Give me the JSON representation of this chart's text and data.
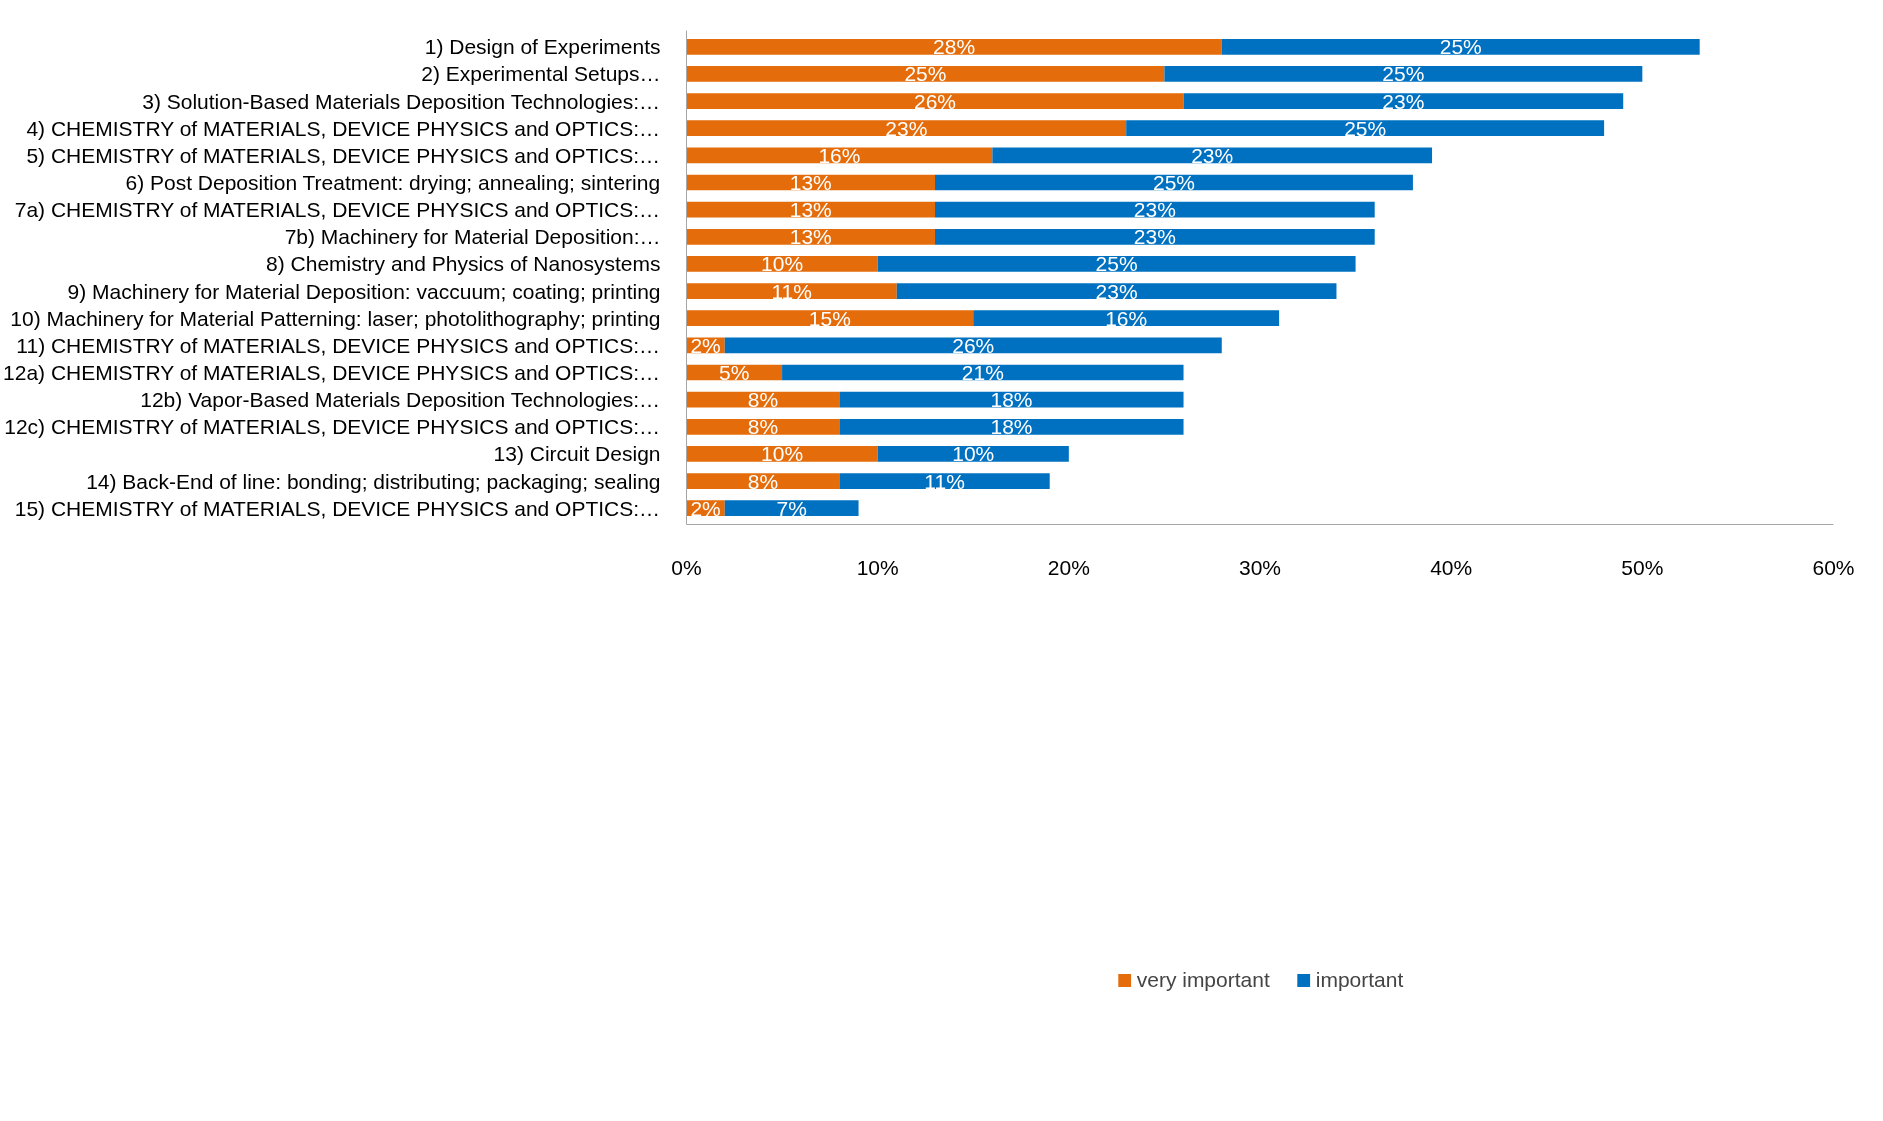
{
  "chart_data": {
    "type": "bar",
    "orientation": "horizontal",
    "stacked": true,
    "categories": [
      "1) Design of Experiments",
      "2) Experimental Setups…",
      "3) Solution-Based Materials Deposition Technologies:…",
      "4) CHEMISTRY of MATERIALS, DEVICE PHYSICS and OPTICS:…",
      "5) CHEMISTRY of MATERIALS, DEVICE PHYSICS and OPTICS:…",
      "6) Post Deposition Treatment: drying; annealing; sintering",
      "7a) CHEMISTRY of MATERIALS, DEVICE PHYSICS and OPTICS:…",
      "7b) Machinery for Material Deposition:…",
      "8) Chemistry and Physics of Nanosystems",
      "9) Machinery for Material Deposition: vaccuum; coating; printing",
      "10) Machinery for Material Patterning: laser; photolithography; printing",
      "11) CHEMISTRY of MATERIALS, DEVICE PHYSICS and OPTICS:…",
      "12a) CHEMISTRY of MATERIALS, DEVICE PHYSICS and OPTICS:…",
      "12b) Vapor-Based Materials Deposition Technologies:…",
      "12c) CHEMISTRY of MATERIALS, DEVICE PHYSICS and OPTICS:…",
      "13) Circuit Design",
      "14) Back-End of line: bonding; distributing; packaging; sealing",
      "15) CHEMISTRY of MATERIALS, DEVICE PHYSICS and OPTICS:…"
    ],
    "series": [
      {
        "name": "very important",
        "color": "#e46c0a",
        "values": [
          28,
          25,
          26,
          23,
          16,
          13,
          13,
          13,
          10,
          11,
          15,
          2,
          5,
          8,
          8,
          10,
          8,
          2
        ],
        "value_labels": [
          "28%",
          "25%",
          "26%",
          "23%",
          "16%",
          "13%",
          "13%",
          "13%",
          "10%",
          "11%",
          "15%",
          "2%",
          "5%",
          "8%",
          "8%",
          "10%",
          "8%",
          "2%"
        ]
      },
      {
        "name": "important",
        "color": "#0070c0",
        "values": [
          25,
          25,
          23,
          25,
          23,
          25,
          23,
          23,
          25,
          23,
          16,
          26,
          21,
          18,
          18,
          10,
          11,
          7
        ],
        "value_labels": [
          "25%",
          "25%",
          "23%",
          "25%",
          "23%",
          "25%",
          "23%",
          "23%",
          "25%",
          "23%",
          "16%",
          "26%",
          "21%",
          "18%",
          "18%",
          "10%",
          "11%",
          "7%"
        ]
      }
    ],
    "xlim": [
      0,
      60
    ],
    "xticks": [
      {
        "value": 0,
        "label": "0%"
      },
      {
        "value": 10,
        "label": "10%"
      },
      {
        "value": 20,
        "label": "20%"
      },
      {
        "value": 30,
        "label": "30%"
      },
      {
        "value": 40,
        "label": "40%"
      },
      {
        "value": 50,
        "label": "50%"
      },
      {
        "value": 60,
        "label": "60%"
      }
    ],
    "grid": false,
    "legend": "bottom"
  }
}
